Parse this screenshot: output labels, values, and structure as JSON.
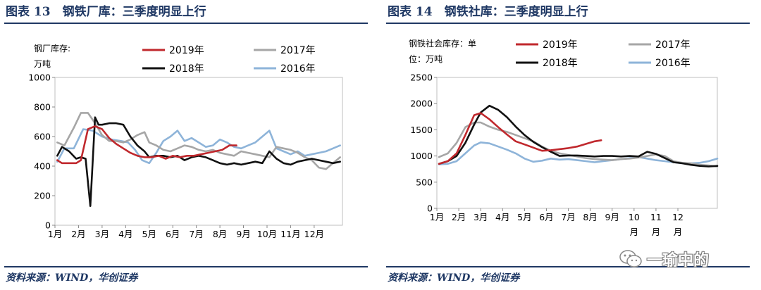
{
  "left": {
    "title": "图表 13　钢铁厂库：三季度明显上行",
    "source": "资料来源：WIND，华创证券"
  },
  "right": {
    "title": "图表 14　钢铁社库：三季度明显上行",
    "source": "资料来源：WIND，华创证券"
  },
  "watermark": "一瑜中的",
  "colors": {
    "2019": "#c0282d",
    "2018": "#111111",
    "2017": "#a6a6a6",
    "2016": "#8eb4d9",
    "title": "#1f3864"
  },
  "chart_data": [
    {
      "type": "line",
      "unit_label": [
        "钢厂库存:",
        "万吨"
      ],
      "ylim": [
        0,
        1000
      ],
      "yticks": [
        0,
        200,
        400,
        600,
        800,
        1000
      ],
      "xlim": [
        1,
        13.2
      ],
      "xticks": [
        {
          "label": "1月",
          "pos": 1
        },
        {
          "label": "2月",
          "pos": 2
        },
        {
          "label": "3月",
          "pos": 3
        },
        {
          "label": "4月",
          "pos": 4
        },
        {
          "label": "5月",
          "pos": 5
        },
        {
          "label": "6月",
          "pos": 6
        },
        {
          "label": "7月",
          "pos": 7
        },
        {
          "label": "8月",
          "pos": 8
        },
        {
          "label": "9月",
          "pos": 9
        },
        {
          "label": "10月",
          "pos": 10
        },
        {
          "label": "11月",
          "pos": 11
        },
        {
          "label": "12月",
          "pos": 12
        }
      ],
      "legend": [
        {
          "name": "2019年",
          "key": "2019"
        },
        {
          "name": "2017年",
          "key": "2017"
        },
        {
          "name": "2018年",
          "key": "2018"
        },
        {
          "name": "2016年",
          "key": "2016"
        }
      ],
      "series": [
        {
          "key": "2016",
          "x": [
            1.1,
            1.4,
            1.8,
            2.2,
            2.6,
            3.0,
            3.4,
            3.8,
            4.1,
            4.4,
            4.7,
            5.0,
            5.3,
            5.6,
            5.9,
            6.2,
            6.5,
            6.8,
            7.1,
            7.4,
            7.7,
            8.0,
            8.3,
            8.6,
            8.9,
            9.2,
            9.5,
            9.8,
            10.1,
            10.4,
            10.7,
            11.0,
            11.3,
            11.6,
            11.9,
            12.2,
            12.5,
            12.8,
            13.1
          ],
          "y": [
            430,
            520,
            520,
            650,
            640,
            600,
            580,
            570,
            560,
            510,
            440,
            420,
            490,
            570,
            600,
            640,
            570,
            590,
            560,
            530,
            540,
            580,
            560,
            530,
            520,
            540,
            560,
            600,
            640,
            520,
            500,
            480,
            500,
            470,
            480,
            490,
            500,
            520,
            540
          ]
        },
        {
          "key": "2017",
          "x": [
            1.1,
            1.4,
            1.8,
            2.1,
            2.4,
            2.7,
            3.0,
            3.3,
            3.6,
            3.9,
            4.2,
            4.5,
            4.8,
            5.0,
            5.3,
            5.6,
            5.9,
            6.2,
            6.5,
            6.8,
            7.1,
            7.4,
            7.7,
            8.0,
            8.3,
            8.6,
            8.9,
            9.2,
            9.5,
            9.8,
            10.1,
            10.4,
            10.7,
            11.0,
            11.3,
            11.6,
            11.9,
            12.2,
            12.5,
            12.8,
            13.1
          ],
          "y": [
            560,
            540,
            660,
            760,
            760,
            690,
            610,
            570,
            570,
            560,
            580,
            610,
            630,
            560,
            540,
            510,
            500,
            520,
            540,
            530,
            510,
            500,
            510,
            490,
            480,
            470,
            500,
            490,
            480,
            470,
            460,
            530,
            520,
            510,
            490,
            460,
            440,
            390,
            380,
            420,
            460
          ]
        },
        {
          "key": "2018",
          "x": [
            1.1,
            1.3,
            1.6,
            1.9,
            2.1,
            2.3,
            2.5,
            2.7,
            2.85,
            3.0,
            3.3,
            3.6,
            3.9,
            4.2,
            4.5,
            4.8,
            5.0,
            5.3,
            5.6,
            5.9,
            6.2,
            6.5,
            6.8,
            7.1,
            7.4,
            7.7,
            8.0,
            8.3,
            8.6,
            8.9,
            9.2,
            9.5,
            9.8,
            10.1,
            10.4,
            10.7,
            11.0,
            11.3,
            11.6,
            11.9,
            12.2,
            12.5,
            12.8,
            13.1
          ],
          "y": [
            470,
            530,
            500,
            450,
            460,
            450,
            130,
            730,
            680,
            680,
            690,
            690,
            680,
            600,
            540,
            500,
            460,
            470,
            470,
            460,
            470,
            440,
            460,
            470,
            460,
            440,
            420,
            410,
            420,
            410,
            420,
            430,
            420,
            500,
            450,
            420,
            410,
            430,
            440,
            450,
            440,
            430,
            420,
            430
          ]
        },
        {
          "key": "2019",
          "x": [
            1.1,
            1.3,
            1.6,
            1.9,
            2.1,
            2.4,
            2.7,
            3.0,
            3.3,
            3.6,
            3.9,
            4.2,
            4.5,
            4.8,
            5.1,
            5.4,
            5.7,
            6.0,
            6.3,
            6.6,
            6.9,
            7.2,
            7.5,
            7.8,
            8.1,
            8.4,
            8.7
          ],
          "y": [
            440,
            420,
            420,
            420,
            440,
            650,
            670,
            650,
            590,
            550,
            520,
            490,
            470,
            460,
            460,
            470,
            450,
            470,
            460,
            470,
            470,
            480,
            490,
            500,
            510,
            540,
            540
          ]
        }
      ]
    },
    {
      "type": "line",
      "unit_label": [
        "钢铁社会库存：单",
        "位：万吨"
      ],
      "ylim": [
        0,
        2500
      ],
      "yticks": [
        0,
        500,
        1000,
        1500,
        2000,
        2500
      ],
      "xlim": [
        1,
        13.8
      ],
      "xticks": [
        {
          "label": "1月",
          "pos": 1
        },
        {
          "label": "2月",
          "pos": 2
        },
        {
          "label": "3月",
          "pos": 3
        },
        {
          "label": "4月",
          "pos": 4
        },
        {
          "label": "5月",
          "pos": 5
        },
        {
          "label": "6月",
          "pos": 6
        },
        {
          "label": "7月",
          "pos": 7
        },
        {
          "label": "8月",
          "pos": 8
        },
        {
          "label": "9月",
          "pos": 9
        },
        {
          "label": "10月",
          "pos": 10
        },
        {
          "label": "11月",
          "pos": 11
        },
        {
          "label": "12月",
          "pos": 12
        }
      ],
      "legend": [
        {
          "name": "2019年",
          "key": "2019"
        },
        {
          "name": "2017年",
          "key": "2017"
        },
        {
          "name": "2018年",
          "key": "2018"
        },
        {
          "name": "2016年",
          "key": "2016"
        }
      ],
      "series": [
        {
          "key": "2016",
          "x": [
            1.1,
            1.5,
            1.9,
            2.3,
            2.7,
            3.0,
            3.4,
            3.8,
            4.2,
            4.6,
            5.0,
            5.4,
            5.8,
            6.2,
            6.6,
            7.0,
            7.4,
            7.8,
            8.2,
            8.6,
            9.0,
            9.4,
            9.8,
            10.2,
            10.6,
            11.0,
            11.4,
            11.8,
            12.2,
            12.6,
            13.0,
            13.4,
            13.8
          ],
          "y": [
            840,
            850,
            900,
            1050,
            1200,
            1260,
            1240,
            1180,
            1120,
            1050,
            950,
            890,
            910,
            950,
            930,
            940,
            920,
            900,
            880,
            900,
            920,
            940,
            960,
            980,
            950,
            920,
            900,
            880,
            860,
            860,
            870,
            900,
            950
          ]
        },
        {
          "key": "2017",
          "x": [
            1.1,
            1.5,
            1.9,
            2.3,
            2.7,
            3.0,
            3.4,
            3.8,
            4.2,
            4.6,
            5.0,
            5.4,
            5.8,
            6.2,
            6.6,
            7.0,
            7.4,
            7.8,
            8.2,
            8.6,
            9.0,
            9.4,
            9.8,
            10.2,
            10.6,
            11.0,
            11.4,
            11.8,
            12.2,
            12.6,
            13.0,
            13.4,
            13.8
          ],
          "y": [
            980,
            1050,
            1250,
            1550,
            1640,
            1640,
            1560,
            1500,
            1460,
            1400,
            1340,
            1280,
            1180,
            1100,
            1050,
            1020,
            990,
            960,
            940,
            930,
            920,
            940,
            950,
            970,
            1000,
            1030,
            1000,
            900,
            870,
            860,
            830,
            820,
            800
          ]
        },
        {
          "key": "2018",
          "x": [
            1.1,
            1.5,
            1.9,
            2.3,
            2.7,
            3.0,
            3.4,
            3.8,
            4.2,
            4.6,
            5.0,
            5.4,
            5.8,
            6.2,
            6.6,
            7.0,
            7.4,
            7.8,
            8.2,
            8.6,
            9.0,
            9.4,
            9.8,
            10.2,
            10.6,
            11.0,
            11.4,
            11.8,
            12.2,
            12.6,
            13.0,
            13.4,
            13.8
          ],
          "y": [
            850,
            900,
            1000,
            1250,
            1600,
            1830,
            1960,
            1880,
            1740,
            1560,
            1400,
            1270,
            1170,
            1080,
            1000,
            1010,
            1010,
            1000,
            990,
            1000,
            1000,
            990,
            1000,
            990,
            1080,
            1040,
            960,
            880,
            860,
            830,
            810,
            800,
            810
          ]
        },
        {
          "key": "2019",
          "x": [
            1.1,
            1.5,
            1.9,
            2.3,
            2.7,
            3.0,
            3.4,
            3.8,
            4.2,
            4.6,
            5.0,
            5.4,
            5.8,
            6.2,
            6.6,
            7.0,
            7.4,
            7.8,
            8.2,
            8.5
          ],
          "y": [
            850,
            900,
            1050,
            1400,
            1780,
            1820,
            1700,
            1550,
            1410,
            1280,
            1220,
            1160,
            1100,
            1110,
            1130,
            1150,
            1180,
            1230,
            1280,
            1300
          ]
        }
      ]
    }
  ]
}
